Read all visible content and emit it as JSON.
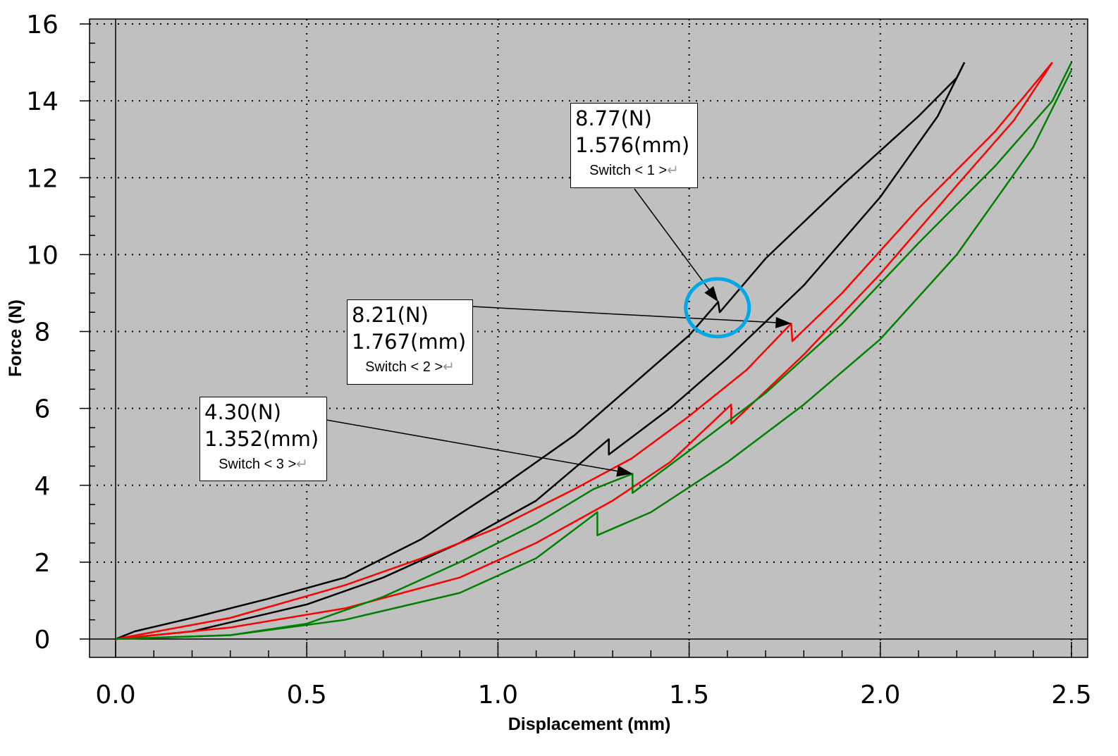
{
  "chart_data": {
    "type": "line",
    "title": "",
    "xlabel": "Displacement (mm)",
    "ylabel": "Force (N)",
    "xlim": [
      -0.07,
      2.55
    ],
    "ylim": [
      -0.5,
      16.1
    ],
    "xticks": [
      "0.0",
      "0.5",
      "1.0",
      "1.5",
      "2.0",
      "2.5"
    ],
    "yticks": [
      "0",
      "2",
      "4",
      "6",
      "8",
      "10",
      "12",
      "14",
      "16"
    ],
    "grid": true,
    "background": "#c0c0c0",
    "series": [
      {
        "color": "#000000",
        "branch": "upper",
        "points": [
          [
            0,
            0
          ],
          [
            0.05,
            0.2
          ],
          [
            0.2,
            0.55
          ],
          [
            0.4,
            1.05
          ],
          [
            0.6,
            1.6
          ],
          [
            0.8,
            2.6
          ],
          [
            1.0,
            3.9
          ],
          [
            1.2,
            5.3
          ],
          [
            1.35,
            6.6
          ],
          [
            1.5,
            7.9
          ],
          [
            1.576,
            8.77
          ],
          [
            1.58,
            8.5
          ],
          [
            1.7,
            9.9
          ],
          [
            1.9,
            11.8
          ],
          [
            2.1,
            13.6
          ],
          [
            2.2,
            14.6
          ],
          [
            2.22,
            15.0
          ]
        ]
      },
      {
        "color": "#000000",
        "branch": "lower",
        "points": [
          [
            0,
            0
          ],
          [
            0.2,
            0.2
          ],
          [
            0.5,
            0.9
          ],
          [
            0.7,
            1.6
          ],
          [
            0.9,
            2.5
          ],
          [
            1.1,
            3.6
          ],
          [
            1.29,
            5.2
          ],
          [
            1.29,
            4.8
          ],
          [
            1.45,
            6.0
          ],
          [
            1.6,
            7.3
          ],
          [
            1.8,
            9.2
          ],
          [
            2.0,
            11.5
          ],
          [
            2.15,
            13.6
          ],
          [
            2.22,
            15.0
          ]
        ]
      },
      {
        "color": "#ff0000",
        "branch": "upper",
        "points": [
          [
            0,
            0
          ],
          [
            0.3,
            0.55
          ],
          [
            0.6,
            1.4
          ],
          [
            0.8,
            2.1
          ],
          [
            1.0,
            2.9
          ],
          [
            1.2,
            3.9
          ],
          [
            1.35,
            4.7
          ],
          [
            1.5,
            5.8
          ],
          [
            1.65,
            7.0
          ],
          [
            1.767,
            8.21
          ],
          [
            1.77,
            7.75
          ],
          [
            1.9,
            9.0
          ],
          [
            2.1,
            11.2
          ],
          [
            2.3,
            13.2
          ],
          [
            2.4,
            14.4
          ],
          [
            2.45,
            15.0
          ]
        ]
      },
      {
        "color": "#ff0000",
        "branch": "lower",
        "points": [
          [
            0,
            0
          ],
          [
            0.3,
            0.3
          ],
          [
            0.6,
            0.8
          ],
          [
            0.9,
            1.6
          ],
          [
            1.1,
            2.5
          ],
          [
            1.3,
            3.6
          ],
          [
            1.45,
            4.6
          ],
          [
            1.61,
            6.1
          ],
          [
            1.61,
            5.6
          ],
          [
            1.8,
            7.4
          ],
          [
            2.0,
            9.5
          ],
          [
            2.2,
            11.8
          ],
          [
            2.35,
            13.5
          ],
          [
            2.45,
            15.0
          ]
        ]
      },
      {
        "color": "#008000",
        "branch": "upper",
        "points": [
          [
            0,
            0
          ],
          [
            0.3,
            0.1
          ],
          [
            0.5,
            0.4
          ],
          [
            0.7,
            1.1
          ],
          [
            0.9,
            2.0
          ],
          [
            1.1,
            3.0
          ],
          [
            1.25,
            3.9
          ],
          [
            1.352,
            4.3
          ],
          [
            1.352,
            3.8
          ],
          [
            1.5,
            4.9
          ],
          [
            1.7,
            6.4
          ],
          [
            1.9,
            8.2
          ],
          [
            2.1,
            10.3
          ],
          [
            2.3,
            12.3
          ],
          [
            2.45,
            14.0
          ],
          [
            2.5,
            15.0
          ]
        ]
      },
      {
        "color": "#008000",
        "branch": "lower",
        "points": [
          [
            0,
            0
          ],
          [
            0.3,
            0.1
          ],
          [
            0.6,
            0.5
          ],
          [
            0.9,
            1.2
          ],
          [
            1.1,
            2.1
          ],
          [
            1.26,
            3.3
          ],
          [
            1.26,
            2.7
          ],
          [
            1.4,
            3.3
          ],
          [
            1.6,
            4.6
          ],
          [
            1.8,
            6.1
          ],
          [
            2.0,
            7.8
          ],
          [
            2.2,
            10.0
          ],
          [
            2.4,
            12.8
          ],
          [
            2.5,
            14.8
          ]
        ]
      }
    ],
    "annotations": [
      {
        "force": "8.77(N)",
        "disp": "1.576(mm)",
        "label": "Switch < 1 >",
        "target": [
          1.576,
          8.77
        ]
      },
      {
        "force": "8.21(N)",
        "disp": "1.767(mm)",
        "label": "Switch < 2 >",
        "target": [
          1.767,
          8.21
        ]
      },
      {
        "force": "4.30(N)",
        "disp": "1.352(mm)",
        "label": "Switch < 3 >",
        "target": [
          1.352,
          4.3
        ]
      }
    ],
    "highlight": {
      "center": [
        1.574,
        8.6
      ],
      "color": "#00a8e8"
    }
  }
}
